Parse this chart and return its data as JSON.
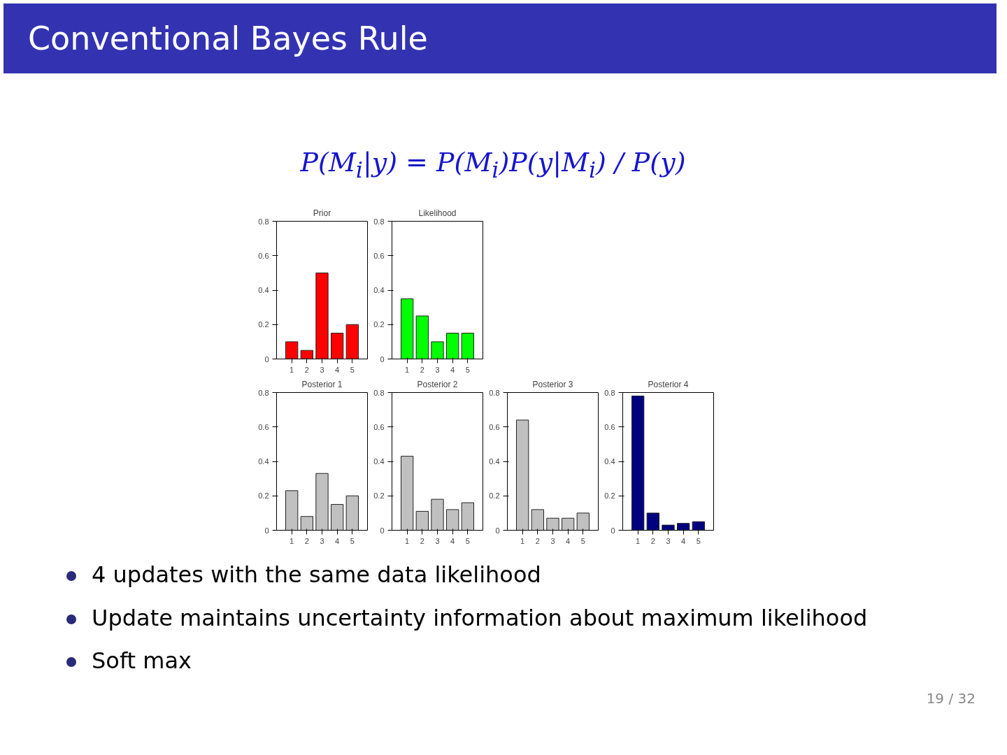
{
  "chart_data": [
    {
      "type": "bar",
      "title": "Prior",
      "categories": [
        "1",
        "2",
        "3",
        "4",
        "5"
      ],
      "values": [
        0.1,
        0.05,
        0.5,
        0.15,
        0.2
      ],
      "color": "#ff0000",
      "ylim": [
        0,
        0.8
      ],
      "yticks": [
        0,
        0.2,
        0.4,
        0.6,
        0.8
      ]
    },
    {
      "type": "bar",
      "title": "Likelihood",
      "categories": [
        "1",
        "2",
        "3",
        "4",
        "5"
      ],
      "values": [
        0.35,
        0.25,
        0.1,
        0.15,
        0.15
      ],
      "color": "#00ff00",
      "ylim": [
        0,
        0.8
      ],
      "yticks": [
        0,
        0.2,
        0.4,
        0.6,
        0.8
      ]
    },
    {
      "type": "bar",
      "title": "Posterior 1",
      "categories": [
        "1",
        "2",
        "3",
        "4",
        "5"
      ],
      "values": [
        0.23,
        0.08,
        0.33,
        0.15,
        0.2
      ],
      "color": "#c0c0c0",
      "ylim": [
        0,
        0.8
      ],
      "yticks": [
        0,
        0.2,
        0.4,
        0.6,
        0.8
      ]
    },
    {
      "type": "bar",
      "title": "Posterior 2",
      "categories": [
        "1",
        "2",
        "3",
        "4",
        "5"
      ],
      "values": [
        0.43,
        0.11,
        0.18,
        0.12,
        0.16
      ],
      "color": "#c0c0c0",
      "ylim": [
        0,
        0.8
      ],
      "yticks": [
        0,
        0.2,
        0.4,
        0.6,
        0.8
      ]
    },
    {
      "type": "bar",
      "title": "Posterior 3",
      "categories": [
        "1",
        "2",
        "3",
        "4",
        "5"
      ],
      "values": [
        0.64,
        0.12,
        0.07,
        0.07,
        0.1
      ],
      "color": "#c0c0c0",
      "ylim": [
        0,
        0.8
      ],
      "yticks": [
        0,
        0.2,
        0.4,
        0.6,
        0.8
      ]
    },
    {
      "type": "bar",
      "title": "Posterior 4",
      "categories": [
        "1",
        "2",
        "3",
        "4",
        "5"
      ],
      "values": [
        0.78,
        0.1,
        0.03,
        0.04,
        0.05
      ],
      "color": "#000080",
      "ylim": [
        0,
        0.8
      ],
      "yticks": [
        0,
        0.2,
        0.4,
        0.6,
        0.8
      ]
    },
    {
      "type": "other",
      "title": "Conventional Bayes Rule",
      "annotations": [
        "P(M$_{i}$|y) = P(M$_{i}$)P(y|M$_{i}$) / P(y)",
        "4 updates  with the same data likelihood",
        "Update maintains uncertainty information about maximum likelihood",
        "Soft max",
        "19 / 32"
      ]
    }
  ]
}
